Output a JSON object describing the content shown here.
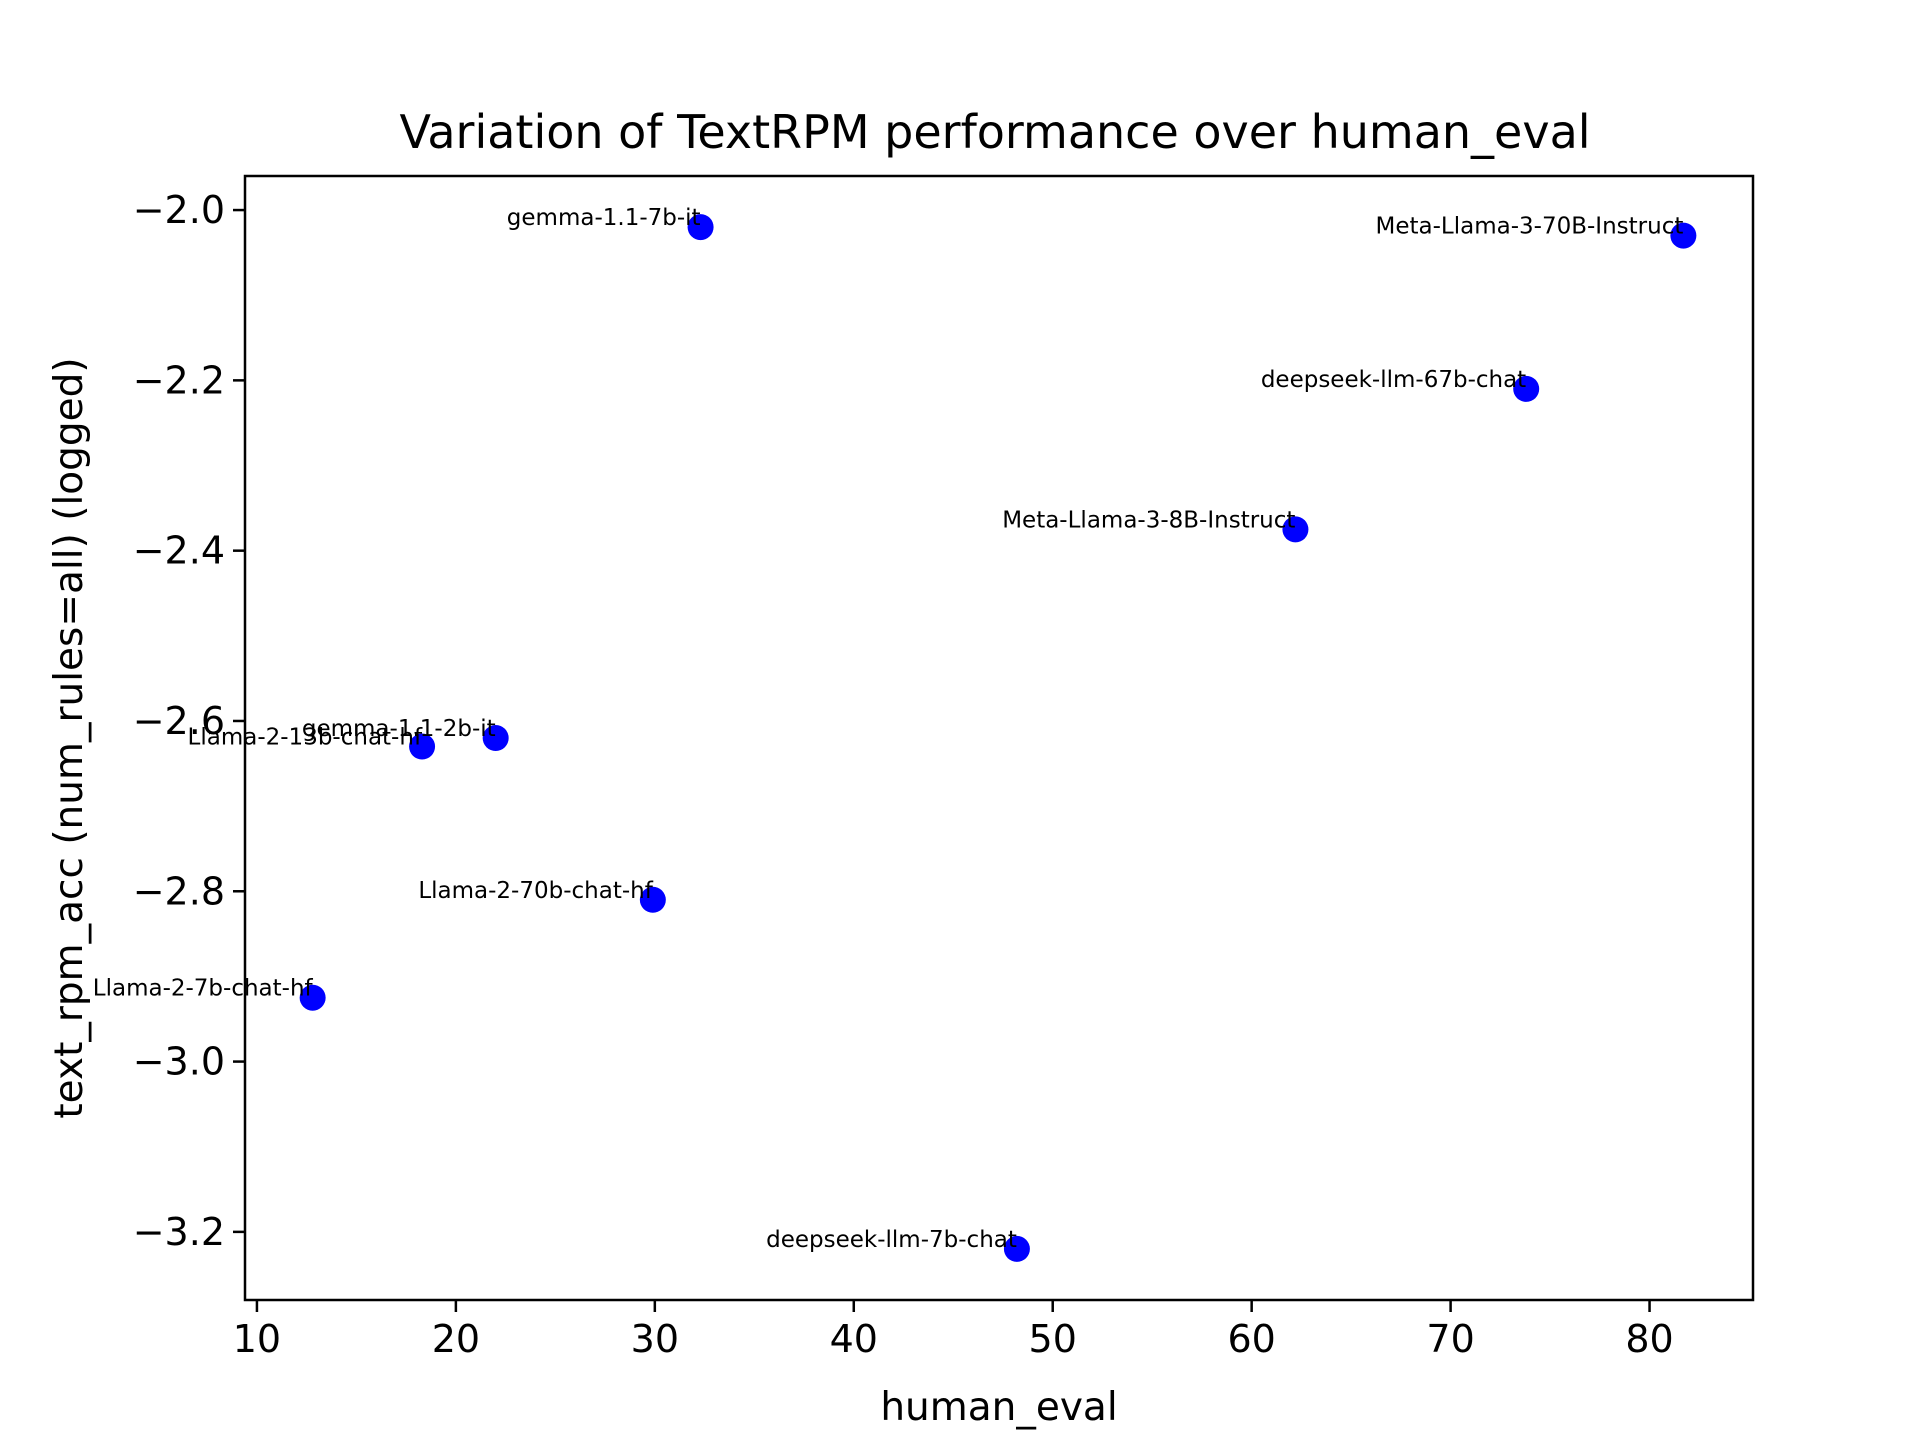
{
  "chart_data": {
    "type": "scatter",
    "title": "Variation of TextRPM performance over human_eval",
    "xlabel": "human_eval",
    "ylabel": "text_rpm_acc (num_rules=all) (logged)",
    "xlim": [
      9.4,
      85.2
    ],
    "ylim": [
      -3.28,
      -1.96
    ],
    "xticks": [
      10,
      20,
      30,
      40,
      50,
      60,
      70,
      80
    ],
    "xtick_labels": [
      "10",
      "20",
      "30",
      "40",
      "50",
      "60",
      "70",
      "80"
    ],
    "yticks": [
      -2.0,
      -2.2,
      -2.4,
      -2.6,
      -2.8,
      -3.0,
      -3.2
    ],
    "ytick_labels": [
      "−2.0",
      "−2.2",
      "−2.4",
      "−2.6",
      "−2.8",
      "−3.0",
      "−3.2"
    ],
    "grid": false,
    "marker_color": "#0000ff",
    "points": [
      {
        "label": "gemma-1.1-7b-it",
        "x": 32.3,
        "y": -2.02
      },
      {
        "label": "Meta-Llama-3-70B-Instruct",
        "x": 81.7,
        "y": -2.03
      },
      {
        "label": "deepseek-llm-67b-chat",
        "x": 73.8,
        "y": -2.21
      },
      {
        "label": "Meta-Llama-3-8B-Instruct",
        "x": 62.2,
        "y": -2.375
      },
      {
        "label": "gemma-1.1-2b-it",
        "x": 22.0,
        "y": -2.62
      },
      {
        "label": "Llama-2-13b-chat-hf",
        "x": 18.3,
        "y": -2.63
      },
      {
        "label": "Llama-2-70b-chat-hf",
        "x": 29.9,
        "y": -2.81
      },
      {
        "label": "Llama-2-7b-chat-hf",
        "x": 12.8,
        "y": -2.925
      },
      {
        "label": "deepseek-llm-7b-chat",
        "x": 48.2,
        "y": -3.22
      }
    ]
  }
}
